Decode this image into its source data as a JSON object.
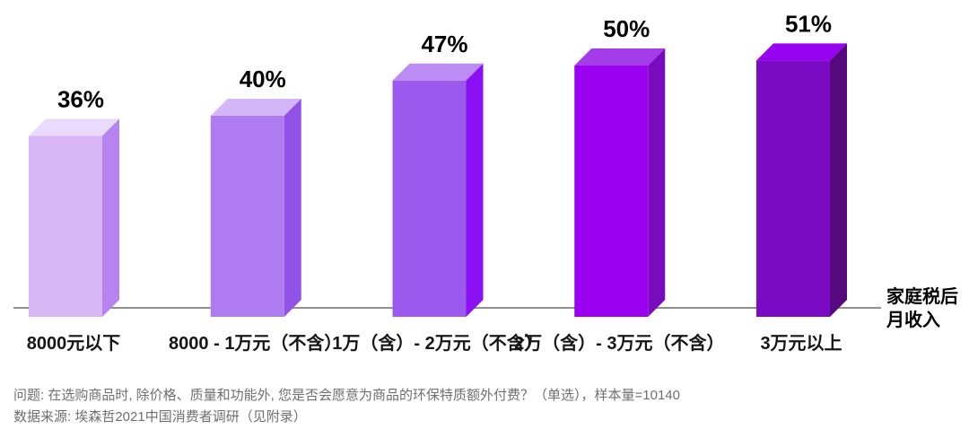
{
  "chart_data": {
    "type": "bar",
    "title": "",
    "categories": [
      "8000元以下",
      "8000 - 1万元（不含）",
      "1万（含）- 2万元（不含）",
      "2万（含）- 3万元（不含）",
      "3万元以上"
    ],
    "values": [
      36,
      40,
      47,
      50,
      51
    ],
    "value_labels": [
      "36%",
      "40%",
      "47%",
      "50%",
      "51%"
    ],
    "xlabel": "家庭税后月收入",
    "xlabel_lines": [
      "家庭税后",
      "月收入"
    ],
    "ylabel": "",
    "ylim": [
      0,
      60
    ],
    "grid": false,
    "legend": "none",
    "style": "3d-boxes",
    "bar_colors": [
      {
        "front": "#d8b5f5",
        "top": "#e9dbfb",
        "side": "#b684ef"
      },
      {
        "front": "#ae7cf0",
        "top": "#d3b6f8",
        "side": "#9251e7"
      },
      {
        "front": "#9c59ed",
        "top": "#bb8df4",
        "side": "#8b10f4"
      },
      {
        "front": "#9b00f0",
        "top": "#a43be9",
        "side": "#7a0cc0"
      },
      {
        "front": "#7a0ac4",
        "top": "#9702f1",
        "side": "#560a7e"
      }
    ]
  },
  "footnotes": {
    "question": "问题: 在选购商品时, 除价格、质量和功能外, 您是否会愿意为商品的环保特质额外付费？（单选），样本量=10140",
    "source": "数据来源: 埃森哲2021中国消费者调研（见附录）"
  },
  "colors": {
    "background": "#ffffff",
    "axis": "#8f8f8f",
    "value_label": "#000000",
    "category_label": "#161616",
    "note_text": "#6f6f6f"
  }
}
